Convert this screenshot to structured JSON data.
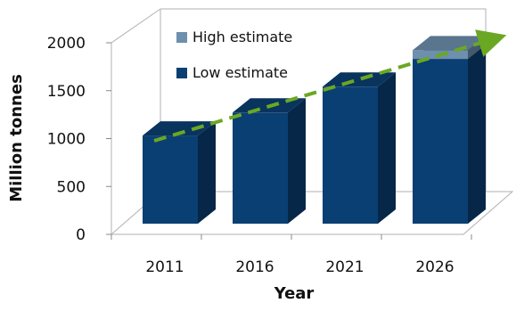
{
  "chart_data": {
    "type": "bar",
    "categories": [
      "2011",
      "2016",
      "2021",
      "2026"
    ],
    "series": [
      {
        "name": "Low estimate",
        "values": [
          920,
          1160,
          1430,
          1720
        ]
      },
      {
        "name": "High estimate",
        "values": [
          0,
          0,
          0,
          90
        ]
      }
    ],
    "xlabel": "Year",
    "ylabel": "Million tonnes",
    "ylim": [
      0,
      2000
    ],
    "yticks": [
      0,
      500,
      1000,
      1500,
      2000
    ],
    "legend_position": "top-left-inside",
    "colors": {
      "Low estimate": "#0a3f73",
      "High estimate": "#6e8fad",
      "trend_arrow": "#6aa823"
    },
    "grid": false,
    "three_d": true,
    "trend_arrow": true
  }
}
